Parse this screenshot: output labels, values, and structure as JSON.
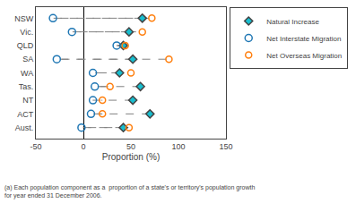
{
  "chart_data": {
    "type": "dot",
    "orientation": "horizontal",
    "categories": [
      "NSW",
      "Vic.",
      "QLD",
      "SA",
      "WA",
      "Tas.",
      "NT",
      "ACT",
      "Aust."
    ],
    "series": [
      {
        "name": "Natural Increase",
        "marker": "diamond",
        "values": [
          62,
          48,
          42,
          52,
          38,
          60,
          52,
          70,
          42
        ]
      },
      {
        "name": "Net Interstate Migration",
        "marker": "circle-open",
        "values": [
          -32,
          -12,
          35,
          -28,
          10,
          12,
          10,
          8,
          -2
        ]
      },
      {
        "name": "Net Overseas Migration",
        "marker": "circle-open",
        "values": [
          72,
          62,
          44,
          90,
          50,
          28,
          20,
          20,
          48
        ]
      }
    ],
    "xlabel": "Proportion (%)",
    "xlim": [
      -50,
      150
    ],
    "xticks": [
      -50,
      0,
      50,
      100,
      150
    ],
    "annotations": [
      "(a) Each population component as a  proportion of a state's or territory's population growth\nfor year ended 31 December 2006."
    ],
    "grid": false,
    "legend": "right"
  }
}
